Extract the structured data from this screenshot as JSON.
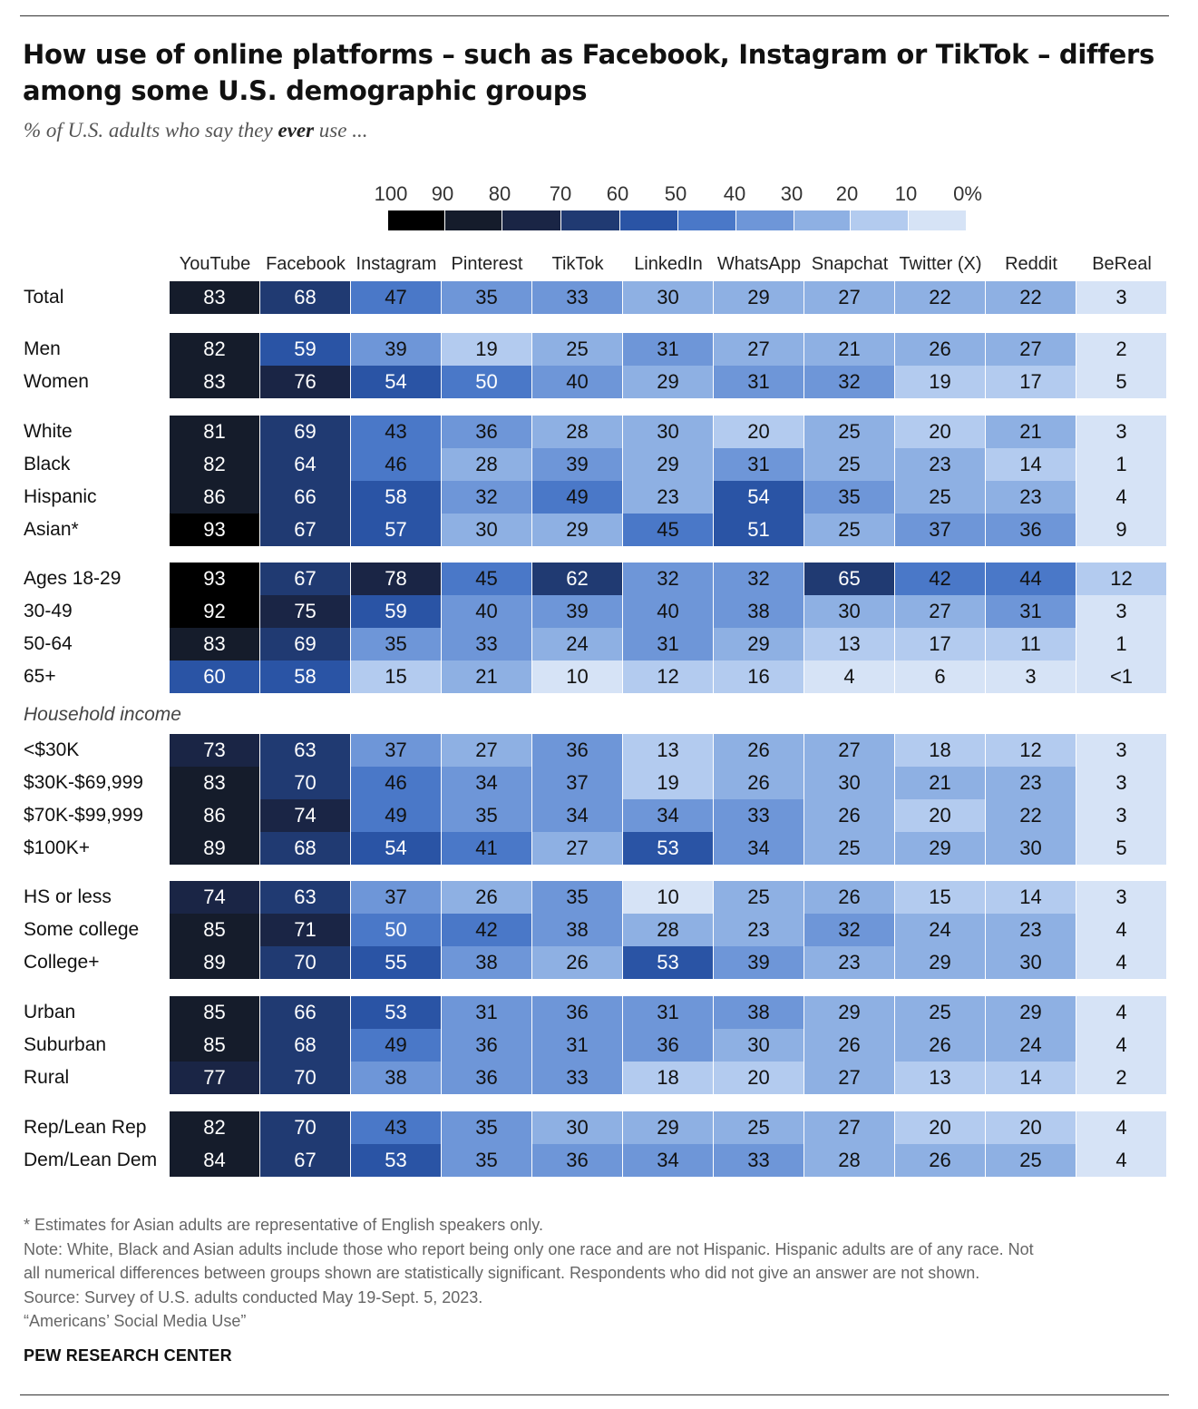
{
  "title": "How use of online platforms – such as Facebook, Instagram or TikTok – differs among some U.S. demographic groups",
  "subtitle_pre": "% of U.S. adults who say they ",
  "subtitle_bold": "ever",
  "subtitle_post": " use ...",
  "legend": {
    "labels": [
      "100",
      "90",
      "80",
      "70",
      "60",
      "50",
      "40",
      "30",
      "20",
      "10",
      "0%"
    ],
    "colors": [
      "#000000",
      "#151c2b",
      "#1a2545",
      "#203a72",
      "#2a54a5",
      "#4a78c8",
      "#6e96d8",
      "#8eb0e3",
      "#b3cbef",
      "#d6e3f6"
    ]
  },
  "section_income": "Household income",
  "chart_data": {
    "type": "heatmap",
    "title": "How use of online platforms – such as Facebook, Instagram or TikTok – differs among some U.S. demographic groups",
    "subtitle": "% of U.S. adults who say they ever use ...",
    "columns": [
      "YouTube",
      "Facebook",
      "Instagram",
      "Pinterest",
      "TikTok",
      "LinkedIn",
      "WhatsApp",
      "Snapchat",
      "Twitter (X)",
      "Reddit",
      "BeReal"
    ],
    "groups": [
      {
        "rows": [
          {
            "label": "Total",
            "values": [
              "83",
              "68",
              "47",
              "35",
              "33",
              "30",
              "29",
              "27",
              "22",
              "22",
              "3"
            ]
          }
        ]
      },
      {
        "rows": [
          {
            "label": "Men",
            "values": [
              "82",
              "59",
              "39",
              "19",
              "25",
              "31",
              "27",
              "21",
              "26",
              "27",
              "2"
            ]
          },
          {
            "label": "Women",
            "values": [
              "83",
              "76",
              "54",
              "50",
              "40",
              "29",
              "31",
              "32",
              "19",
              "17",
              "5"
            ]
          }
        ]
      },
      {
        "rows": [
          {
            "label": "White",
            "values": [
              "81",
              "69",
              "43",
              "36",
              "28",
              "30",
              "20",
              "25",
              "20",
              "21",
              "3"
            ]
          },
          {
            "label": "Black",
            "values": [
              "82",
              "64",
              "46",
              "28",
              "39",
              "29",
              "31",
              "25",
              "23",
              "14",
              "1"
            ]
          },
          {
            "label": "Hispanic",
            "values": [
              "86",
              "66",
              "58",
              "32",
              "49",
              "23",
              "54",
              "35",
              "25",
              "23",
              "4"
            ]
          },
          {
            "label": "Asian*",
            "values": [
              "93",
              "67",
              "57",
              "30",
              "29",
              "45",
              "51",
              "25",
              "37",
              "36",
              "9"
            ]
          }
        ]
      },
      {
        "rows": [
          {
            "label": "Ages 18-29",
            "values": [
              "93",
              "67",
              "78",
              "45",
              "62",
              "32",
              "32",
              "65",
              "42",
              "44",
              "12"
            ]
          },
          {
            "label": "30-49",
            "values": [
              "92",
              "75",
              "59",
              "40",
              "39",
              "40",
              "38",
              "30",
              "27",
              "31",
              "3"
            ]
          },
          {
            "label": "50-64",
            "values": [
              "83",
              "69",
              "35",
              "33",
              "24",
              "31",
              "29",
              "13",
              "17",
              "11",
              "1"
            ]
          },
          {
            "label": "65+",
            "values": [
              "60",
              "58",
              "15",
              "21",
              "10",
              "12",
              "16",
              "4",
              "6",
              "3",
              "<1"
            ]
          }
        ]
      },
      {
        "rows": [
          {
            "label": "<$30K",
            "values": [
              "73",
              "63",
              "37",
              "27",
              "36",
              "13",
              "26",
              "27",
              "18",
              "12",
              "3"
            ]
          },
          {
            "label": "$30K-$69,999",
            "values": [
              "83",
              "70",
              "46",
              "34",
              "37",
              "19",
              "26",
              "30",
              "21",
              "23",
              "3"
            ]
          },
          {
            "label": "$70K-$99,999",
            "values": [
              "86",
              "74",
              "49",
              "35",
              "34",
              "34",
              "33",
              "26",
              "20",
              "22",
              "3"
            ]
          },
          {
            "label": "$100K+",
            "values": [
              "89",
              "68",
              "54",
              "41",
              "27",
              "53",
              "34",
              "25",
              "29",
              "30",
              "5"
            ]
          }
        ]
      },
      {
        "rows": [
          {
            "label": "HS or less",
            "values": [
              "74",
              "63",
              "37",
              "26",
              "35",
              "10",
              "25",
              "26",
              "15",
              "14",
              "3"
            ]
          },
          {
            "label": "Some college",
            "values": [
              "85",
              "71",
              "50",
              "42",
              "38",
              "28",
              "23",
              "32",
              "24",
              "23",
              "4"
            ]
          },
          {
            "label": "College+",
            "values": [
              "89",
              "70",
              "55",
              "38",
              "26",
              "53",
              "39",
              "23",
              "29",
              "30",
              "4"
            ]
          }
        ]
      },
      {
        "rows": [
          {
            "label": "Urban",
            "values": [
              "85",
              "66",
              "53",
              "31",
              "36",
              "31",
              "38",
              "29",
              "25",
              "29",
              "4"
            ]
          },
          {
            "label": "Suburban",
            "values": [
              "85",
              "68",
              "49",
              "36",
              "31",
              "36",
              "30",
              "26",
              "26",
              "24",
              "4"
            ]
          },
          {
            "label": "Rural",
            "values": [
              "77",
              "70",
              "38",
              "36",
              "33",
              "18",
              "20",
              "27",
              "13",
              "14",
              "2"
            ]
          }
        ]
      },
      {
        "rows": [
          {
            "label": "Rep/Lean Rep",
            "values": [
              "82",
              "70",
              "43",
              "35",
              "30",
              "29",
              "25",
              "27",
              "20",
              "20",
              "4"
            ]
          },
          {
            "label": "Dem/Lean Dem",
            "values": [
              "84",
              "67",
              "53",
              "35",
              "36",
              "34",
              "33",
              "28",
              "26",
              "25",
              "4"
            ]
          }
        ]
      }
    ]
  },
  "footnotes": {
    "asian": "* Estimates for Asian adults are representative of English speakers only.",
    "note_line1": "Note: White, Black and Asian adults include those who report being only one race and are not Hispanic. Hispanic adults are of any race. Not",
    "note_line2": "all numerical differences between groups shown are statistically significant. Respondents who did not give an answer are not shown.",
    "source": "Source: Survey of U.S. adults conducted May 19-Sept. 5, 2023.",
    "report": "“Americans’ Social Media Use”"
  },
  "brand": "PEW RESEARCH CENTER"
}
